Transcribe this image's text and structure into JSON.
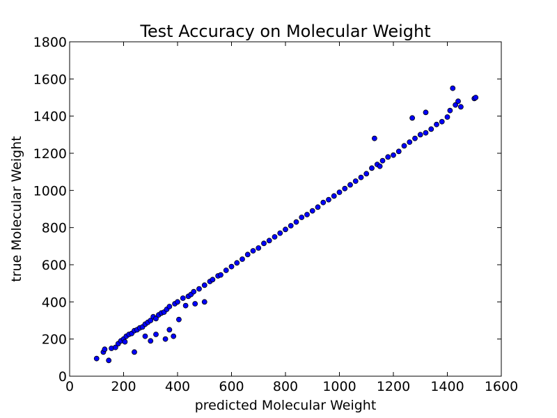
{
  "chart_data": {
    "type": "scatter",
    "title": "Test Accuracy on Molecular Weight",
    "xlabel": "predicted Molecular Weight",
    "ylabel": "true Molecular Weight",
    "xlim": [
      0,
      1600
    ],
    "ylim": [
      0,
      1800
    ],
    "xticks": [
      "0",
      "200",
      "400",
      "600",
      "800",
      "1000",
      "1200",
      "1400",
      "1600"
    ],
    "yticks": [
      "0",
      "200",
      "400",
      "600",
      "800",
      "1000",
      "1200",
      "1400",
      "1600",
      "1800"
    ],
    "grid": false,
    "marker_color": "#0000ff",
    "marker_edge_color": "#000000",
    "series": [
      {
        "points": [
          [
            100,
            95
          ],
          [
            125,
            130
          ],
          [
            130,
            145
          ],
          [
            145,
            85
          ],
          [
            155,
            150
          ],
          [
            170,
            155
          ],
          [
            180,
            175
          ],
          [
            190,
            190
          ],
          [
            200,
            200
          ],
          [
            205,
            185
          ],
          [
            210,
            215
          ],
          [
            220,
            225
          ],
          [
            230,
            230
          ],
          [
            240,
            130
          ],
          [
            240,
            245
          ],
          [
            250,
            250
          ],
          [
            260,
            260
          ],
          [
            270,
            265
          ],
          [
            280,
            215
          ],
          [
            280,
            280
          ],
          [
            290,
            290
          ],
          [
            300,
            190
          ],
          [
            300,
            300
          ],
          [
            310,
            320
          ],
          [
            320,
            225
          ],
          [
            320,
            310
          ],
          [
            330,
            330
          ],
          [
            340,
            340
          ],
          [
            350,
            345
          ],
          [
            355,
            200
          ],
          [
            360,
            360
          ],
          [
            370,
            250
          ],
          [
            370,
            375
          ],
          [
            385,
            215
          ],
          [
            390,
            390
          ],
          [
            400,
            400
          ],
          [
            405,
            305
          ],
          [
            420,
            420
          ],
          [
            430,
            380
          ],
          [
            440,
            430
          ],
          [
            450,
            440
          ],
          [
            460,
            455
          ],
          [
            465,
            390
          ],
          [
            480,
            470
          ],
          [
            500,
            400
          ],
          [
            500,
            490
          ],
          [
            520,
            510
          ],
          [
            530,
            520
          ],
          [
            550,
            540
          ],
          [
            560,
            545
          ],
          [
            580,
            570
          ],
          [
            600,
            590
          ],
          [
            620,
            610
          ],
          [
            640,
            630
          ],
          [
            660,
            655
          ],
          [
            680,
            675
          ],
          [
            700,
            690
          ],
          [
            720,
            715
          ],
          [
            740,
            730
          ],
          [
            760,
            750
          ],
          [
            780,
            770
          ],
          [
            800,
            790
          ],
          [
            820,
            810
          ],
          [
            840,
            830
          ],
          [
            860,
            855
          ],
          [
            880,
            870
          ],
          [
            900,
            890
          ],
          [
            920,
            910
          ],
          [
            940,
            935
          ],
          [
            960,
            950
          ],
          [
            980,
            970
          ],
          [
            1000,
            990
          ],
          [
            1020,
            1010
          ],
          [
            1040,
            1030
          ],
          [
            1060,
            1050
          ],
          [
            1080,
            1070
          ],
          [
            1100,
            1090
          ],
          [
            1120,
            1120
          ],
          [
            1130,
            1280
          ],
          [
            1140,
            1140
          ],
          [
            1150,
            1130
          ],
          [
            1160,
            1160
          ],
          [
            1180,
            1180
          ],
          [
            1200,
            1190
          ],
          [
            1220,
            1210
          ],
          [
            1240,
            1240
          ],
          [
            1260,
            1260
          ],
          [
            1270,
            1390
          ],
          [
            1280,
            1280
          ],
          [
            1300,
            1300
          ],
          [
            1320,
            1420
          ],
          [
            1320,
            1310
          ],
          [
            1340,
            1330
          ],
          [
            1360,
            1355
          ],
          [
            1380,
            1370
          ],
          [
            1400,
            1395
          ],
          [
            1410,
            1430
          ],
          [
            1420,
            1550
          ],
          [
            1430,
            1460
          ],
          [
            1440,
            1480
          ],
          [
            1450,
            1450
          ],
          [
            1500,
            1495
          ],
          [
            1505,
            1500
          ]
        ]
      }
    ]
  }
}
